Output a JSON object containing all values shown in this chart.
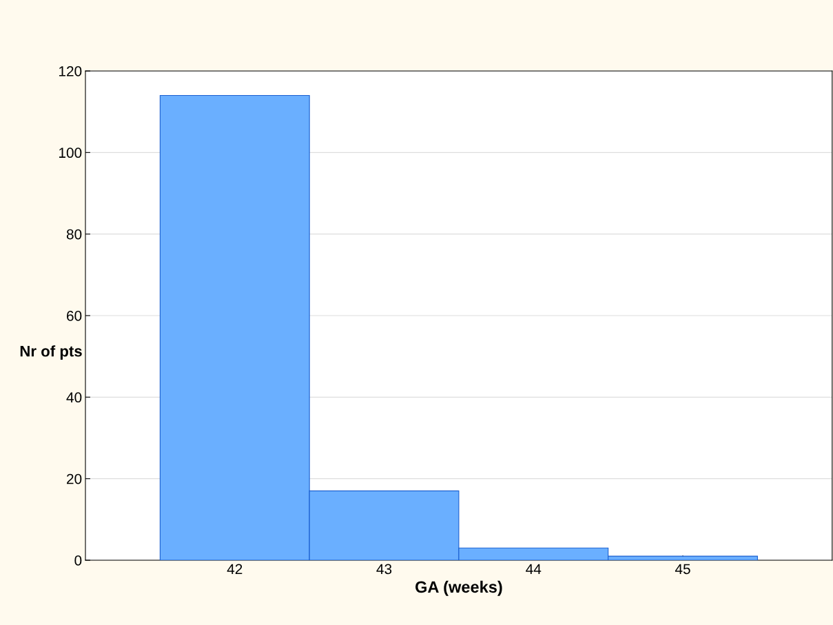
{
  "chart_data": {
    "type": "histogram",
    "xlabel": "GA (weeks)",
    "ylabel": "Nr of pts",
    "bins": [
      41.5,
      42.5,
      43.5,
      44.5,
      45.5
    ],
    "values": [
      114,
      17,
      3,
      1
    ],
    "color": "#6aafff",
    "xlim": [
      41,
      46
    ],
    "xticks": [
      42,
      43,
      44,
      45
    ],
    "ylim": [
      0,
      120
    ],
    "yticks": [
      0,
      20,
      40,
      60,
      80,
      100,
      120
    ],
    "grid": "y"
  }
}
